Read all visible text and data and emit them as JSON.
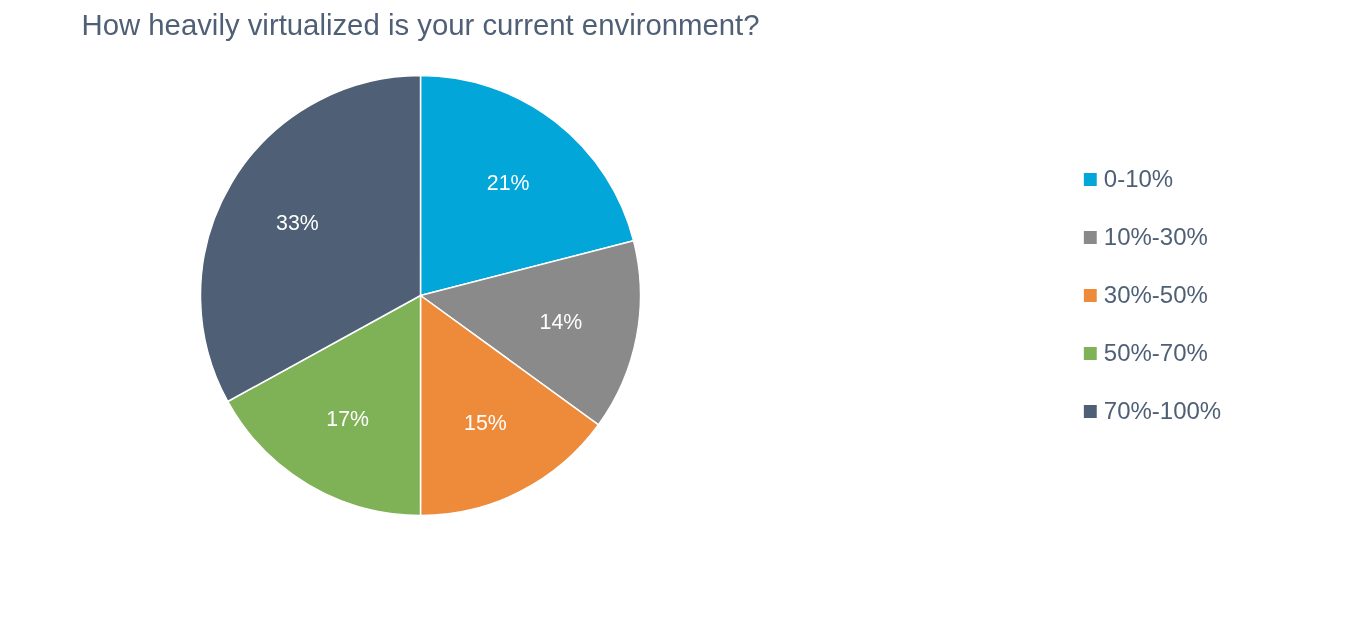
{
  "chart_data": {
    "type": "pie",
    "title": "How heavily virtualized is your current environment?",
    "categories": [
      "0-10%",
      "10%-30%",
      "30%-50%",
      "50%-70%",
      "70%-100%"
    ],
    "values": [
      21,
      14,
      15,
      17,
      33
    ],
    "colors": [
      "#02a6d8",
      "#8a8a8a",
      "#ed8b3a",
      "#7fb157",
      "#4f5f75"
    ],
    "value_labels": [
      "21%",
      "14%",
      "15%",
      "17%",
      "33%"
    ],
    "legend": "right"
  }
}
